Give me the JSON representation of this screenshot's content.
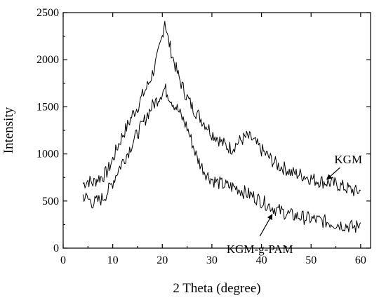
{
  "chart_data": {
    "type": "line",
    "xlabel": "2 Theta (degree)",
    "ylabel": "Intensity",
    "xlim": [
      0,
      62
    ],
    "ylim": [
      0,
      2500
    ],
    "xticks": [
      0,
      10,
      20,
      30,
      40,
      50,
      60
    ],
    "yticks": [
      0,
      500,
      1000,
      1500,
      2000,
      2500
    ],
    "grid": false,
    "colors": {
      "line": "#000000",
      "axis": "#000000"
    },
    "series": [
      {
        "name": "KGM",
        "x": [
          4,
          5,
          6,
          7,
          8,
          9,
          10,
          11,
          12,
          13,
          14,
          15,
          16,
          17,
          18,
          19,
          20,
          20.5,
          21,
          22,
          23,
          24,
          25,
          26,
          27,
          28,
          29,
          30,
          31,
          32,
          33,
          34,
          35,
          36,
          37,
          38,
          39,
          40,
          41,
          42,
          43,
          44,
          45,
          46,
          47,
          48,
          49,
          50,
          51,
          52,
          53,
          54,
          55,
          56,
          57,
          58,
          59,
          60
        ],
        "values": [
          680,
          720,
          690,
          740,
          760,
          820,
          940,
          1080,
          1200,
          1300,
          1420,
          1500,
          1620,
          1720,
          1850,
          2020,
          2250,
          2430,
          2250,
          2050,
          1860,
          1720,
          1600,
          1500,
          1430,
          1360,
          1300,
          1220,
          1180,
          1120,
          1080,
          1060,
          1110,
          1150,
          1180,
          1160,
          1100,
          1040,
          990,
          940,
          890,
          860,
          840,
          800,
          790,
          780,
          760,
          740,
          720,
          710,
          700,
          690,
          680,
          660,
          640,
          620,
          600,
          610
        ]
      },
      {
        "name": "KGM-g-PAM",
        "x": [
          4,
          5,
          6,
          7,
          8,
          9,
          10,
          11,
          12,
          13,
          14,
          15,
          16,
          17,
          18,
          19,
          20,
          20.5,
          21,
          22,
          23,
          24,
          25,
          26,
          27,
          28,
          29,
          30,
          31,
          32,
          33,
          34,
          35,
          36,
          37,
          38,
          39,
          40,
          41,
          42,
          43,
          44,
          45,
          46,
          47,
          48,
          49,
          50,
          51,
          52,
          53,
          54,
          55,
          56,
          57,
          58,
          59,
          60
        ],
        "values": [
          560,
          520,
          480,
          500,
          530,
          600,
          700,
          820,
          920,
          1010,
          1120,
          1220,
          1310,
          1420,
          1510,
          1580,
          1660,
          1690,
          1650,
          1560,
          1480,
          1380,
          1280,
          1120,
          960,
          860,
          780,
          730,
          700,
          680,
          660,
          650,
          640,
          610,
          580,
          560,
          530,
          500,
          470,
          440,
          410,
          390,
          370,
          350,
          340,
          330,
          320,
          310,
          300,
          290,
          280,
          270,
          260,
          250,
          240,
          230,
          220,
          270
        ]
      }
    ],
    "annotations": [
      {
        "text": "KGM",
        "series": "KGM",
        "x_data": 53,
        "y_data": 720
      },
      {
        "text": "KGM-g-PAM",
        "series": "KGM-g-PAM",
        "x_data": 42.5,
        "y_data": 395
      }
    ]
  }
}
